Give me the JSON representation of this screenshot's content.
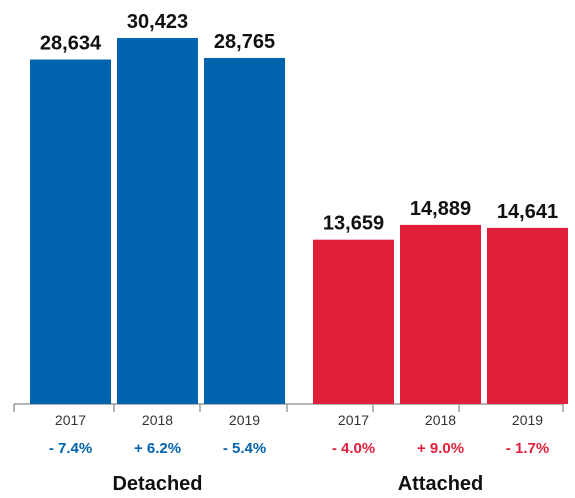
{
  "chart_data": {
    "type": "bar",
    "groups": [
      {
        "name": "Detached",
        "color": "#0063ad",
        "categories": [
          "2017",
          "2018",
          "2019"
        ],
        "values": [
          28634,
          30423,
          28765
        ],
        "value_labels": [
          "28,634",
          "30,423",
          "28,765"
        ],
        "changes": [
          "- 7.4%",
          "+ 6.2%",
          "- 5.4%"
        ]
      },
      {
        "name": "Attached",
        "color": "#e0203b",
        "categories": [
          "2017",
          "2018",
          "2019"
        ],
        "values": [
          13659,
          14889,
          14641
        ],
        "value_labels": [
          "13,659",
          "14,889",
          "14,641"
        ],
        "changes": [
          "- 4.0%",
          "+ 9.0%",
          "- 1.7%"
        ]
      }
    ],
    "ylim": [
      0,
      30423
    ],
    "grid": false,
    "legend": "none"
  }
}
